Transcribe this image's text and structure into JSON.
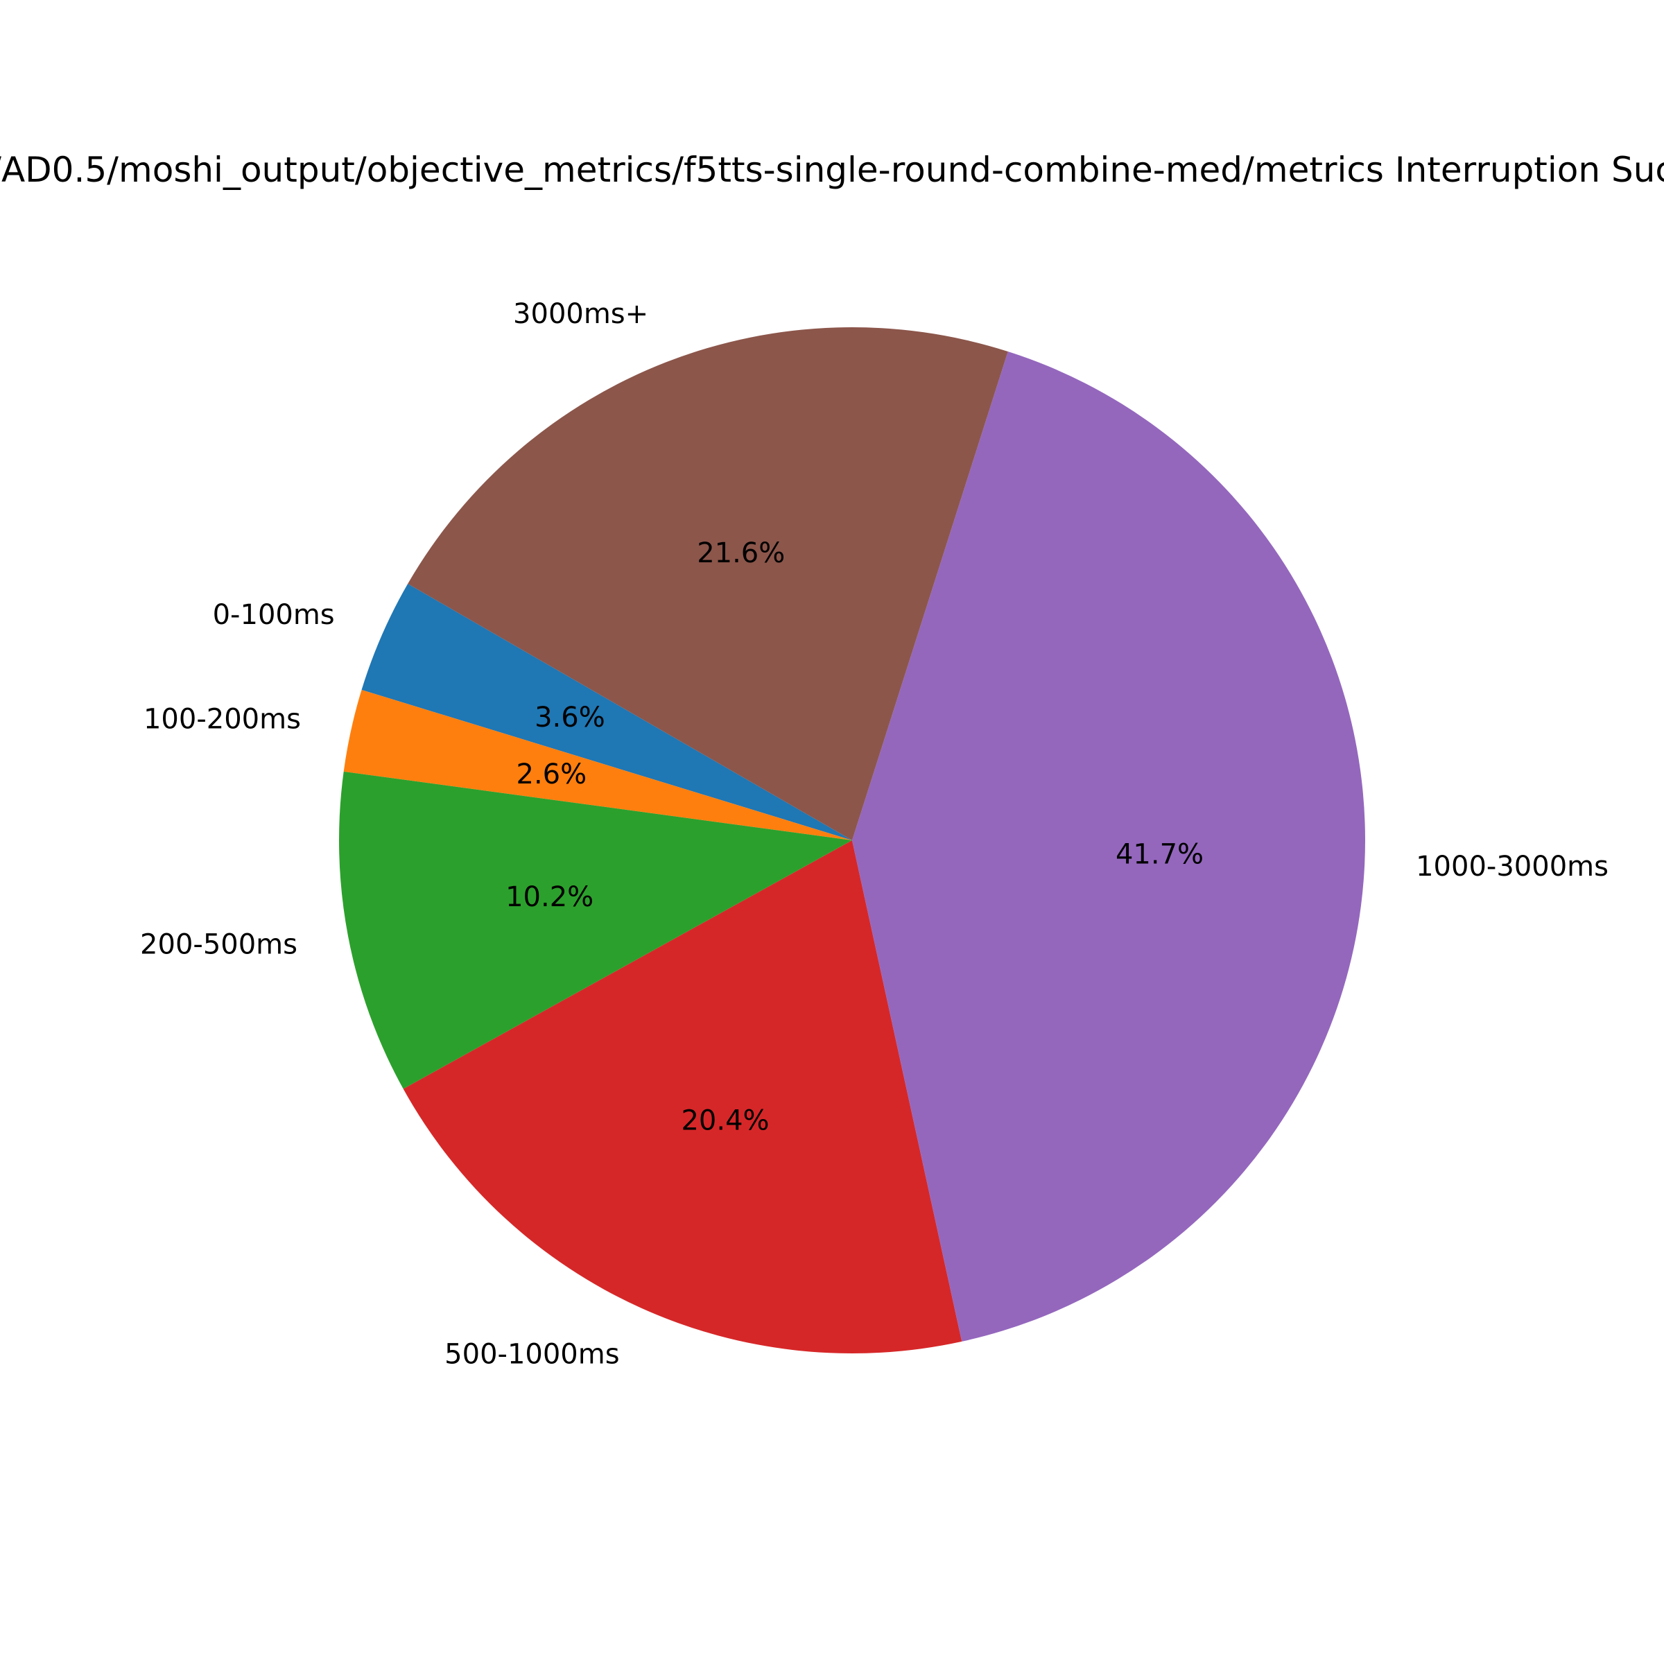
{
  "chart_data": {
    "type": "pie",
    "title": "/AD0.5/moshi_output/objective_metrics/f5tts-single-round-combine-med/metrics Interruption Suc",
    "start_angle_deg": 150,
    "direction": "counterclockwise",
    "slices": [
      {
        "label": "0-100ms",
        "value": 3.6,
        "pct_label": "3.6%",
        "color": "#1f77b4"
      },
      {
        "label": "100-200ms",
        "value": 2.6,
        "pct_label": "2.6%",
        "color": "#ff7f0e"
      },
      {
        "label": "200-500ms",
        "value": 10.2,
        "pct_label": "10.2%",
        "color": "#2ca02c"
      },
      {
        "label": "500-1000ms",
        "value": 20.4,
        "pct_label": "20.4%",
        "color": "#d62728"
      },
      {
        "label": "1000-3000ms",
        "value": 41.7,
        "pct_label": "41.7%",
        "color": "#9467bd"
      },
      {
        "label": "3000ms+",
        "value": 21.6,
        "pct_label": "21.6%",
        "color": "#8c564b"
      }
    ]
  }
}
